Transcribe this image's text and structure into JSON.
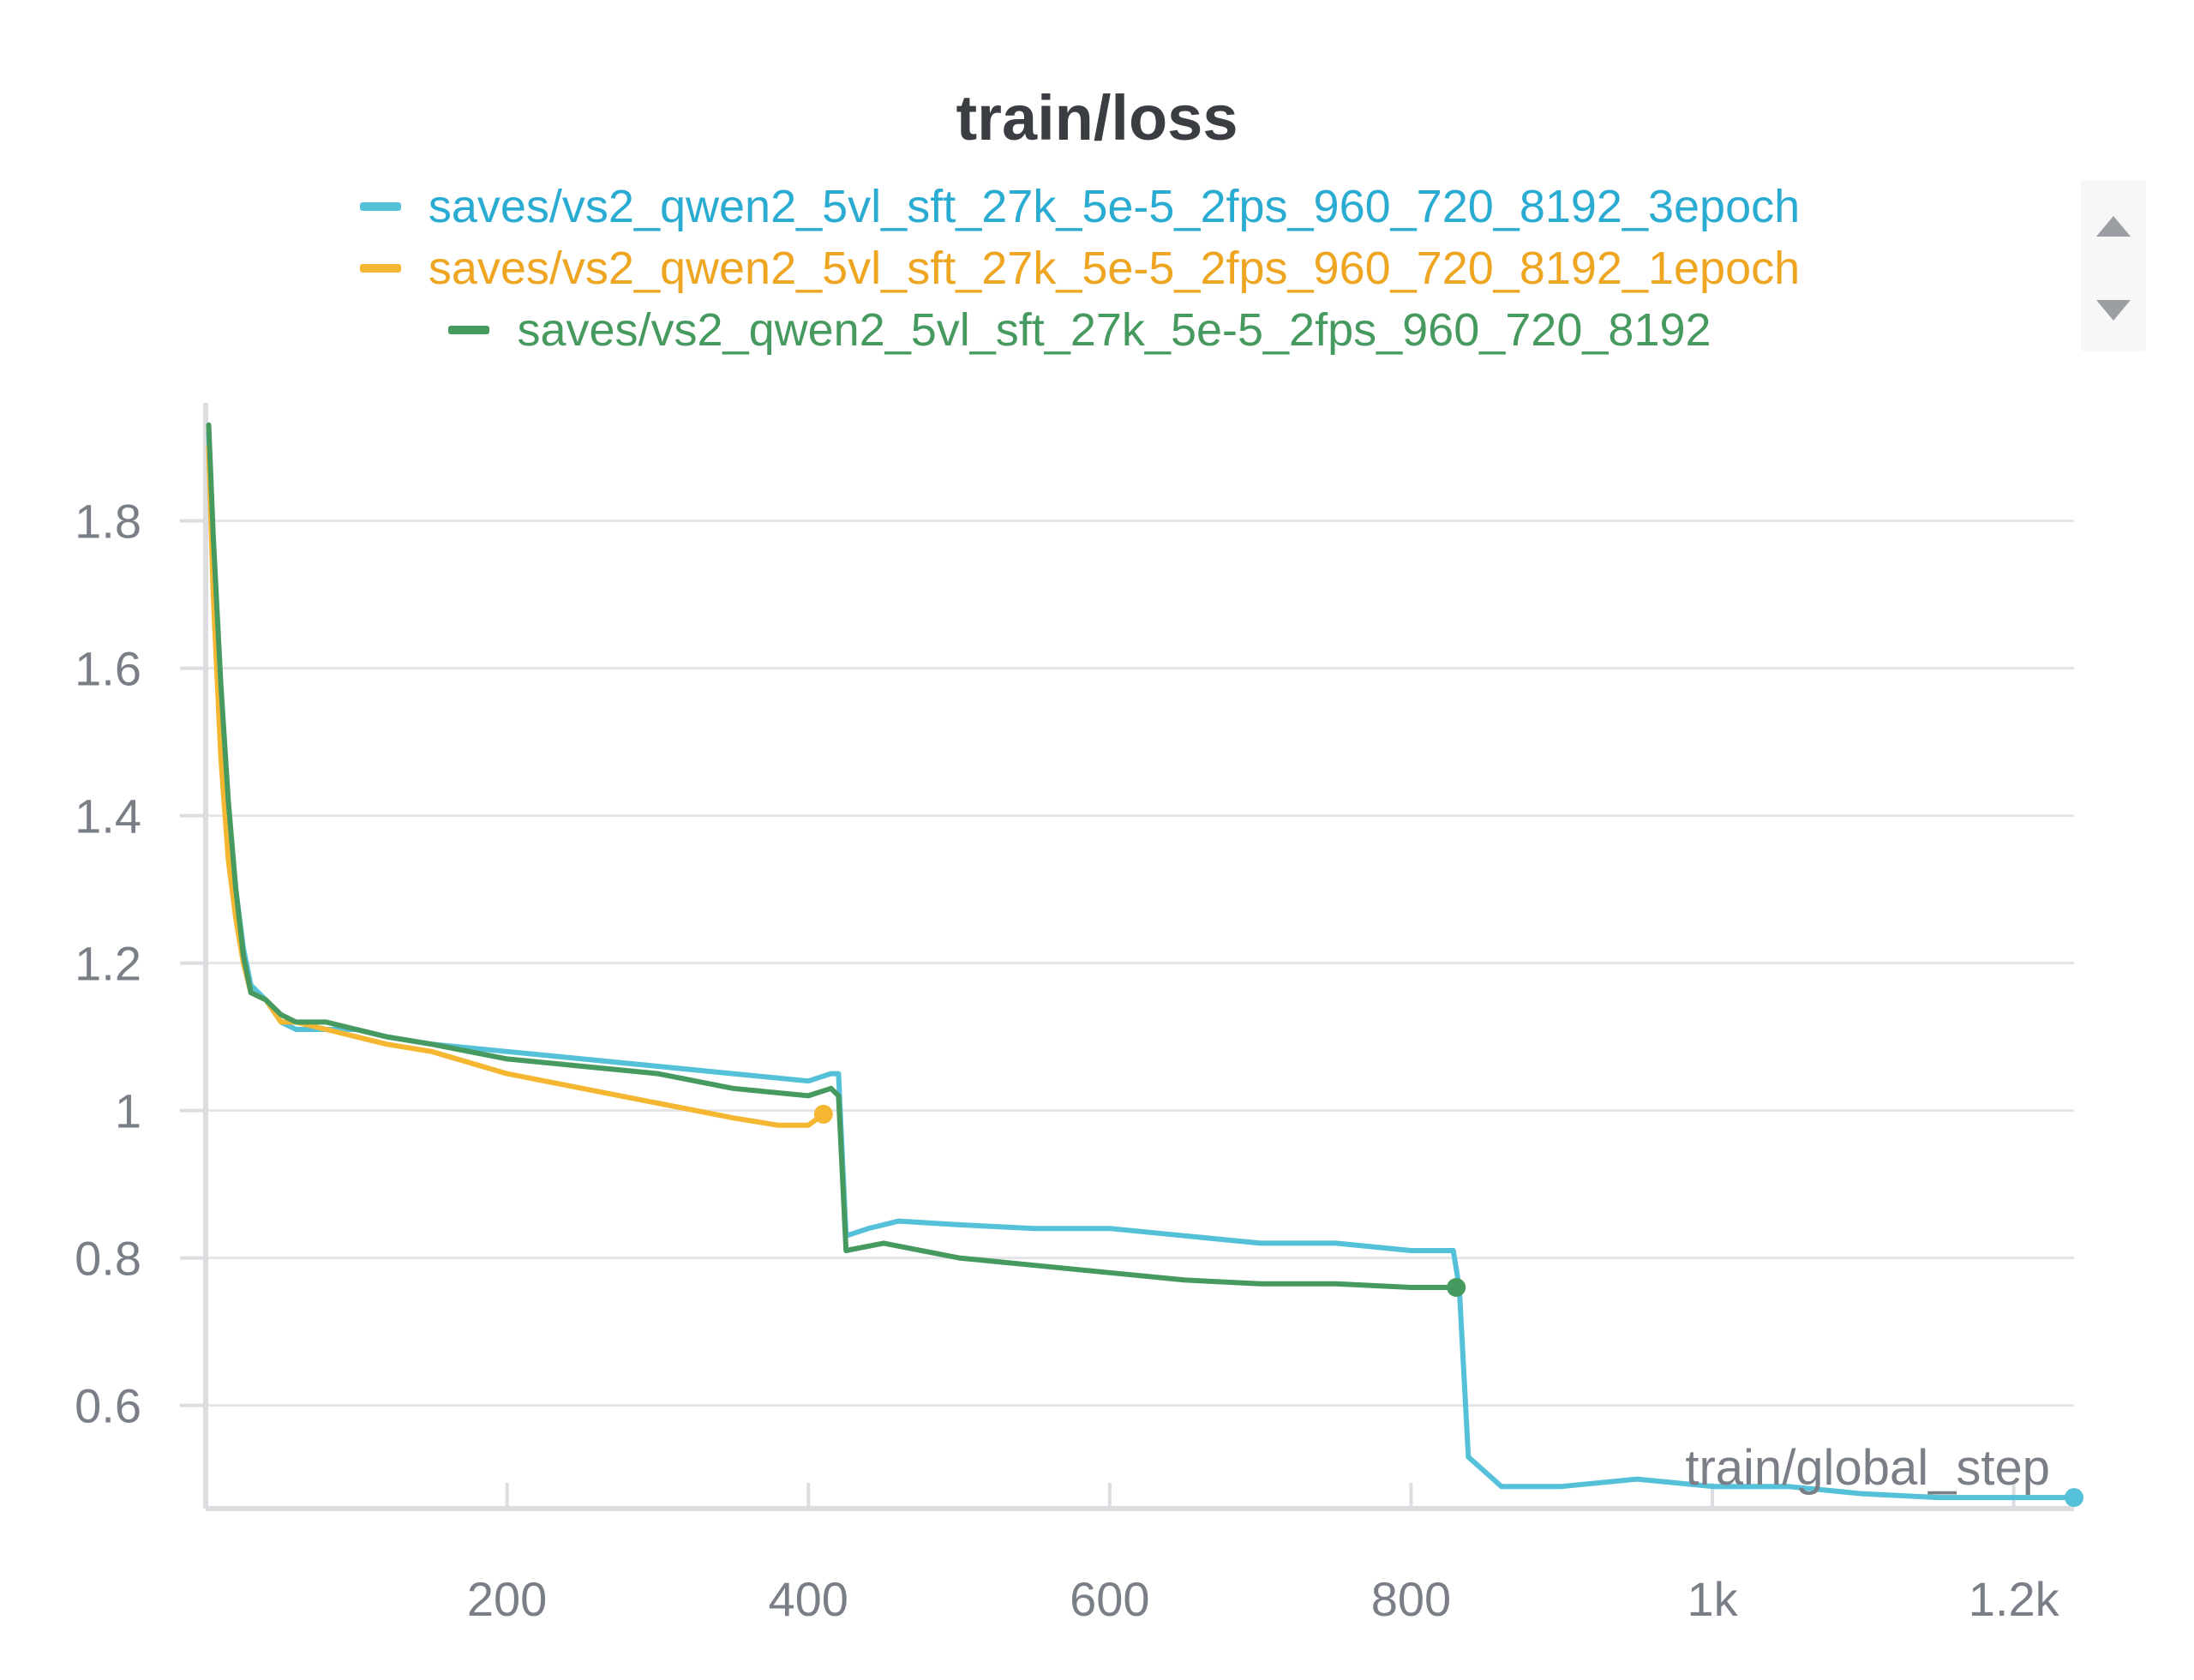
{
  "chart_data": {
    "type": "line",
    "title": "train/loss",
    "xlabel": "train/global_step",
    "ylabel": "",
    "xlim": [
      0,
      1240
    ],
    "ylim": [
      0.46,
      1.96
    ],
    "x_ticks": [
      {
        "value": 200,
        "label": "200"
      },
      {
        "value": 400,
        "label": "400"
      },
      {
        "value": 600,
        "label": "600"
      },
      {
        "value": 800,
        "label": "800"
      },
      {
        "value": 1000,
        "label": "1k"
      },
      {
        "value": 1200,
        "label": "1.2k"
      }
    ],
    "y_ticks": [
      {
        "value": 0.6,
        "label": "0.6"
      },
      {
        "value": 0.8,
        "label": "0.8"
      },
      {
        "value": 1.0,
        "label": "1"
      },
      {
        "value": 1.2,
        "label": "1.2"
      },
      {
        "value": 1.4,
        "label": "1.4"
      },
      {
        "value": 1.6,
        "label": "1.6"
      },
      {
        "value": 1.8,
        "label": "1.8"
      }
    ],
    "grid": true,
    "legend_position": "top-center",
    "series": [
      {
        "name": "saves/vs2_qwen2_5vl_sft_27k_5e-5_2fps_960_720_8192_3epoch",
        "color": "#55c1d9",
        "end_marker": true,
        "x": [
          2,
          5,
          10,
          15,
          20,
          25,
          30,
          40,
          50,
          60,
          80,
          100,
          120,
          150,
          200,
          250,
          300,
          350,
          400,
          415,
          420,
          425,
          440,
          460,
          500,
          550,
          600,
          650,
          700,
          750,
          800,
          828,
          832,
          838,
          860,
          900,
          950,
          1000,
          1050,
          1100,
          1150,
          1200,
          1240
        ],
        "y": [
          1.92,
          1.75,
          1.55,
          1.4,
          1.3,
          1.22,
          1.17,
          1.15,
          1.12,
          1.11,
          1.11,
          1.11,
          1.1,
          1.09,
          1.08,
          1.07,
          1.06,
          1.05,
          1.04,
          1.05,
          1.05,
          0.83,
          0.84,
          0.85,
          0.845,
          0.84,
          0.84,
          0.83,
          0.82,
          0.82,
          0.81,
          0.81,
          0.76,
          0.53,
          0.49,
          0.49,
          0.5,
          0.49,
          0.49,
          0.48,
          0.475,
          0.475,
          0.475
        ]
      },
      {
        "name": "saves/vs2_qwen2_5vl_sft_27k_5e-5_2fps_960_720_8192_1epoch",
        "color": "#f5b731",
        "end_marker": true,
        "x": [
          2,
          5,
          10,
          15,
          20,
          25,
          30,
          40,
          50,
          60,
          80,
          100,
          120,
          150,
          200,
          250,
          300,
          350,
          380,
          400,
          410
        ],
        "y": [
          1.9,
          1.7,
          1.48,
          1.34,
          1.26,
          1.2,
          1.16,
          1.15,
          1.12,
          1.12,
          1.11,
          1.1,
          1.09,
          1.08,
          1.05,
          1.03,
          1.01,
          0.99,
          0.98,
          0.98,
          0.995
        ]
      },
      {
        "name": "saves/vs2_qwen2_5vl_sft_27k_5e-5_2fps_960_720_8192",
        "color": "#479a5f",
        "end_marker": true,
        "x": [
          2,
          5,
          10,
          15,
          20,
          25,
          30,
          40,
          50,
          60,
          80,
          100,
          120,
          150,
          200,
          250,
          300,
          350,
          400,
          415,
          420,
          425,
          450,
          500,
          550,
          600,
          650,
          700,
          750,
          800,
          830
        ],
        "y": [
          1.93,
          1.78,
          1.58,
          1.42,
          1.3,
          1.21,
          1.16,
          1.15,
          1.13,
          1.12,
          1.12,
          1.11,
          1.1,
          1.09,
          1.07,
          1.06,
          1.05,
          1.03,
          1.02,
          1.03,
          1.02,
          0.81,
          0.82,
          0.8,
          0.79,
          0.78,
          0.77,
          0.765,
          0.765,
          0.76,
          0.76
        ]
      }
    ]
  },
  "ui": {
    "scroll_up_icon": "triangle-up",
    "scroll_down_icon": "triangle-down"
  }
}
